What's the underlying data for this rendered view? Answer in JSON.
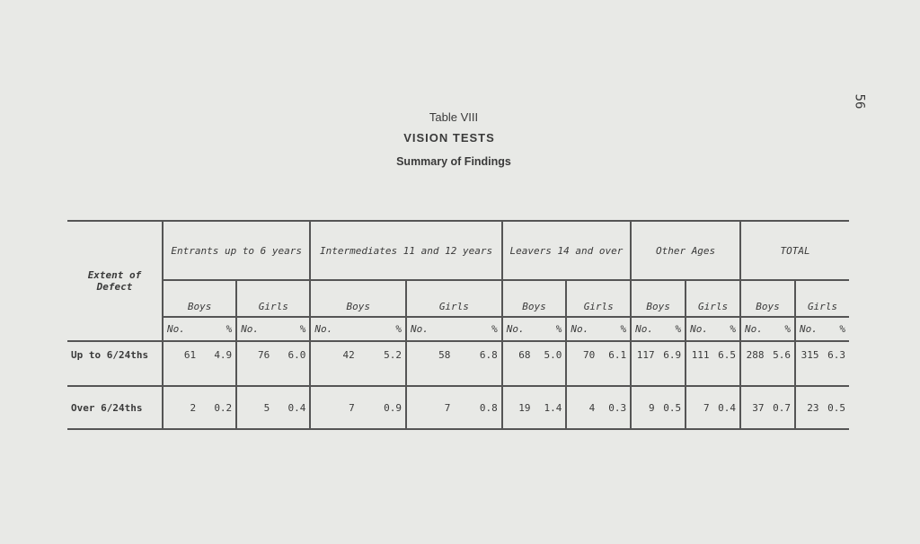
{
  "page_number": "56",
  "caption": "Table VIII",
  "title": "VISION TESTS",
  "subtitle": "Summary of Findings",
  "table": {
    "row_header": "Extent of Defect",
    "groups": [
      "Entrants up to 6 years",
      "Intermediates 11 and 12 years",
      "Leavers 14 and over",
      "Other Ages",
      "TOTAL"
    ],
    "sexes": [
      "Boys",
      "Girls"
    ],
    "no_label": "No.",
    "pct_label": "%",
    "rows": [
      {
        "label": "Up to 6/24ths",
        "values": [
          [
            "61",
            "4.9"
          ],
          [
            "76",
            "6.0"
          ],
          [
            "42",
            "5.2"
          ],
          [
            "58",
            "6.8"
          ],
          [
            "68",
            "5.0"
          ],
          [
            "70",
            "6.1"
          ],
          [
            "117",
            "6.9"
          ],
          [
            "111",
            "6.5"
          ],
          [
            "288",
            "5.6"
          ],
          [
            "315",
            "6.3"
          ]
        ]
      },
      {
        "label": "Over 6/24ths",
        "values": [
          [
            "2",
            "0.2"
          ],
          [
            "5",
            "0.4"
          ],
          [
            "7",
            "0.9"
          ],
          [
            "7",
            "0.8"
          ],
          [
            "19",
            "1.4"
          ],
          [
            "4",
            "0.3"
          ],
          [
            "9",
            "0.5"
          ],
          [
            "7",
            "0.4"
          ],
          [
            "37",
            "0.7"
          ],
          [
            "23",
            "0.5"
          ]
        ]
      }
    ]
  }
}
